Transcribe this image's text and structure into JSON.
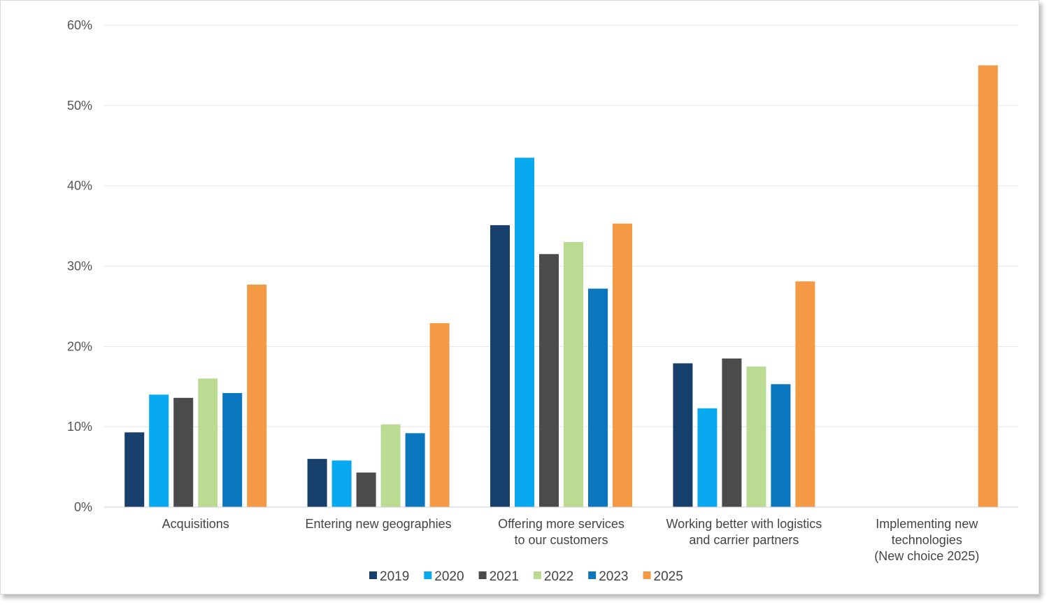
{
  "chart_data": {
    "type": "bar",
    "title": "",
    "xlabel": "",
    "ylabel": "",
    "ylim": [
      0,
      60
    ],
    "yticks": [
      0,
      10,
      20,
      30,
      40,
      50,
      60
    ],
    "ytick_labels": [
      "0%",
      "10%",
      "20%",
      "30%",
      "40%",
      "50%",
      "60%"
    ],
    "grid": true,
    "legend_position": "bottom-center",
    "categories": [
      [
        "Acquisitions"
      ],
      [
        "Entering new geographies"
      ],
      [
        "Offering more services",
        "to our customers"
      ],
      [
        "Working better with logistics",
        "and carrier partners"
      ],
      [
        "Implementing new",
        "technologies",
        "(New choice 2025)"
      ]
    ],
    "series": [
      {
        "name": "2019",
        "color": "#173f6b",
        "values": [
          9.3,
          6.0,
          35.1,
          17.9,
          null
        ]
      },
      {
        "name": "2020",
        "color": "#08a9ef",
        "values": [
          14.0,
          5.8,
          43.5,
          12.3,
          null
        ]
      },
      {
        "name": "2021",
        "color": "#4b4b4b",
        "values": [
          13.6,
          4.3,
          31.5,
          18.5,
          null
        ]
      },
      {
        "name": "2022",
        "color": "#bcdb92",
        "values": [
          16.0,
          10.3,
          33.0,
          17.5,
          null
        ]
      },
      {
        "name": "2023",
        "color": "#0a76bd",
        "values": [
          14.2,
          9.2,
          27.2,
          15.3,
          null
        ]
      },
      {
        "name": "2025",
        "color": "#f59a44",
        "values": [
          27.7,
          22.9,
          35.3,
          28.1,
          55.0
        ]
      }
    ],
    "gridline_color": "#e4e4e4",
    "axis_color": "#cfcfcf"
  }
}
